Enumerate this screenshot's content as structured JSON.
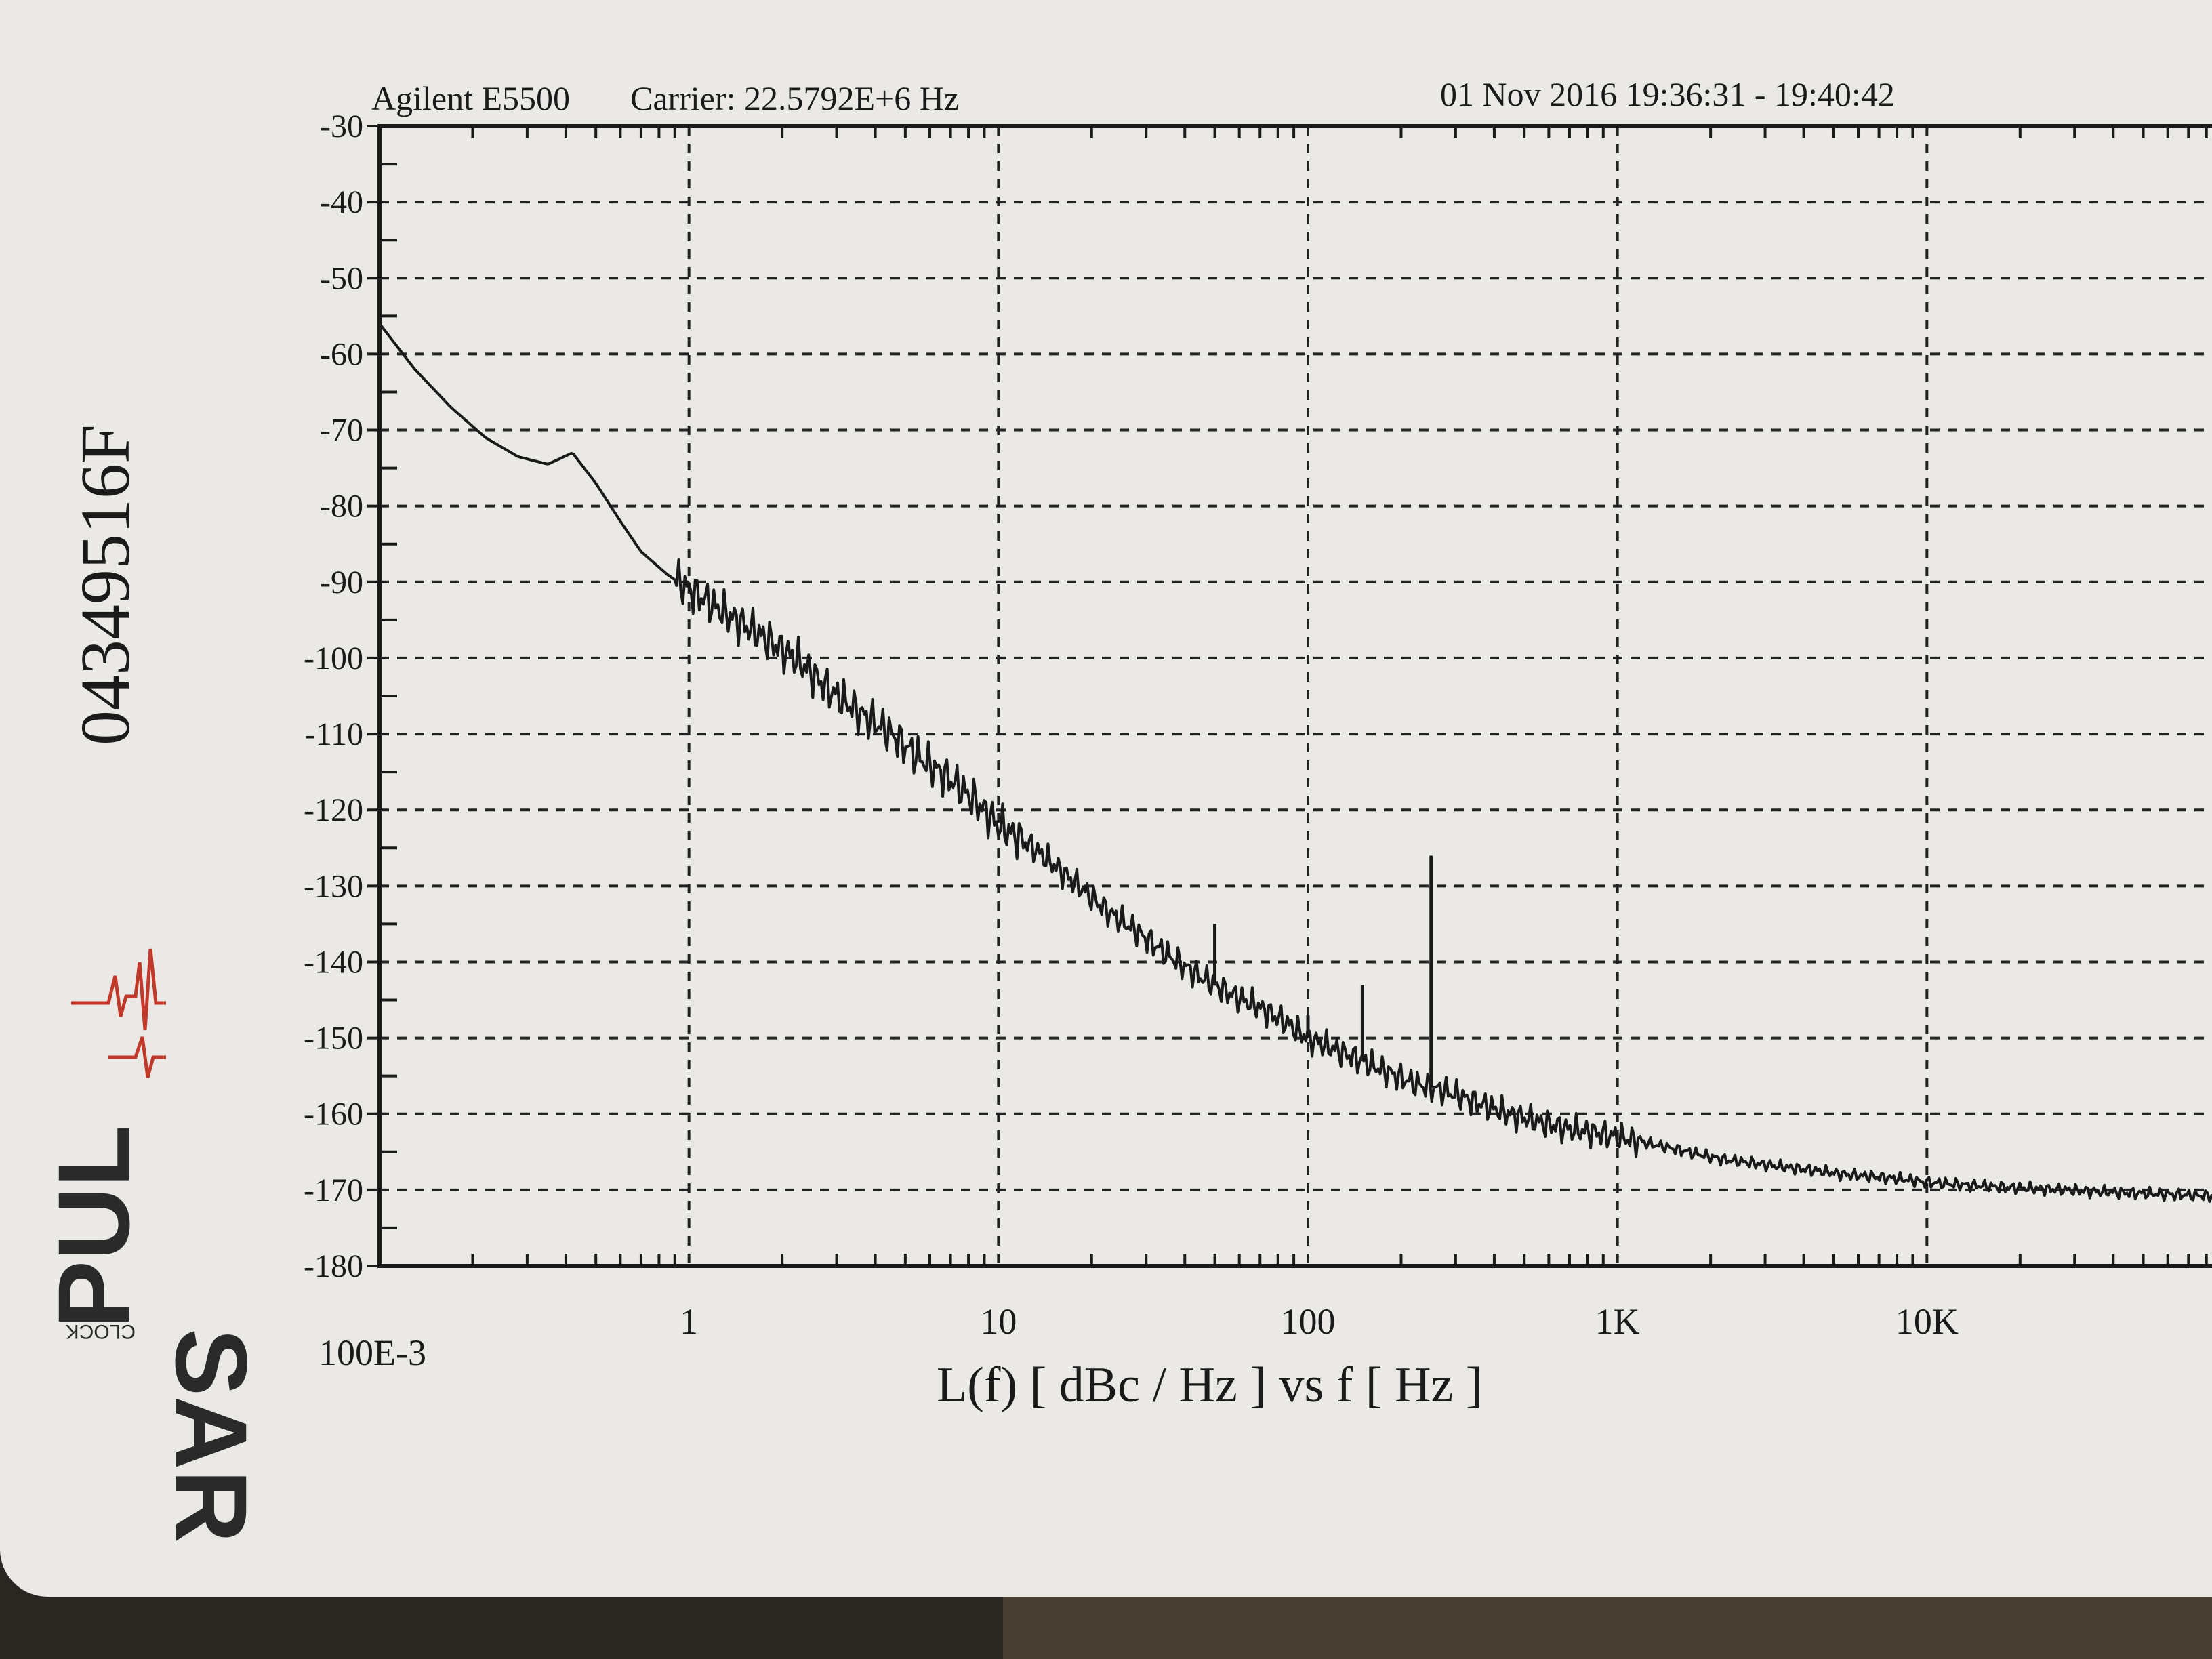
{
  "header": {
    "instrument": "Agilent E5500",
    "carrier": "Carrier: 22.5792E+6 Hz",
    "datetime": "01 Nov 2016  19:36:31 - 19:40:42"
  },
  "serial_number": "04349516F",
  "logo": {
    "text_top": "PUL",
    "text_bottom": "SAR",
    "text_small": "CLOCK",
    "pulse_color": "#c0392b",
    "text_color": "#2a2a2a"
  },
  "chart_data": {
    "type": "line",
    "title": "",
    "xlabel": "L(f)  [ dBc / Hz ]  vs  f  [ Hz ]",
    "ylabel": "",
    "x_scale": "log",
    "xlim": [
      0.1,
      100000
    ],
    "ylim": [
      -180,
      -30
    ],
    "x_ticks": [
      {
        "value": 0.1,
        "label": "100E-3"
      },
      {
        "value": 1,
        "label": "1"
      },
      {
        "value": 10,
        "label": "10"
      },
      {
        "value": 100,
        "label": "100"
      },
      {
        "value": 1000,
        "label": "1K"
      },
      {
        "value": 10000,
        "label": "10K"
      }
    ],
    "y_ticks": [
      -30,
      -40,
      -50,
      -60,
      -70,
      -80,
      -90,
      -100,
      -110,
      -120,
      -130,
      -140,
      -150,
      -160,
      -170,
      -180
    ],
    "grid": true,
    "series": [
      {
        "x": [
          0.1,
          0.13,
          0.17,
          0.22,
          0.28,
          0.35,
          0.42,
          0.5,
          0.6,
          0.7,
          0.85,
          1.0,
          1.3,
          1.7,
          2.2,
          2.8,
          3.5,
          4.5,
          5.5,
          7,
          8.5,
          10,
          13,
          17,
          22,
          28,
          35,
          45,
          55,
          70,
          85,
          100,
          130,
          170,
          220,
          280,
          350,
          450,
          550,
          700,
          850,
          1000,
          1300,
          1700,
          2200,
          2800,
          3500,
          4500,
          5500,
          7000,
          8500,
          10000,
          13000,
          17000,
          22000,
          28000,
          35000,
          45000,
          55000,
          70000,
          85000,
          100000
        ],
        "y": [
          -56,
          -62,
          -67,
          -71,
          -73.5,
          -74.5,
          -73,
          -77,
          -82,
          -86,
          -89,
          -91,
          -94,
          -97,
          -100,
          -104,
          -107,
          -110,
          -113,
          -116,
          -119,
          -122,
          -125,
          -129,
          -133,
          -136,
          -139,
          -142,
          -144,
          -146,
          -148,
          -150,
          -152,
          -154,
          -156,
          -157,
          -158.5,
          -160,
          -161,
          -162,
          -162.5,
          -163,
          -164,
          -165,
          -166,
          -166.5,
          -167,
          -167.5,
          -168,
          -168.3,
          -168.6,
          -169,
          -169.3,
          -169.6,
          -169.8,
          -170,
          -170.2,
          -170.4,
          -170.5,
          -170.7,
          -170.8,
          -171
        ]
      }
    ],
    "spurs": [
      {
        "x": 50,
        "y": -135
      },
      {
        "x": 100,
        "y": -147
      },
      {
        "x": 150,
        "y": -143
      },
      {
        "x": 250,
        "y": -126
      }
    ]
  }
}
